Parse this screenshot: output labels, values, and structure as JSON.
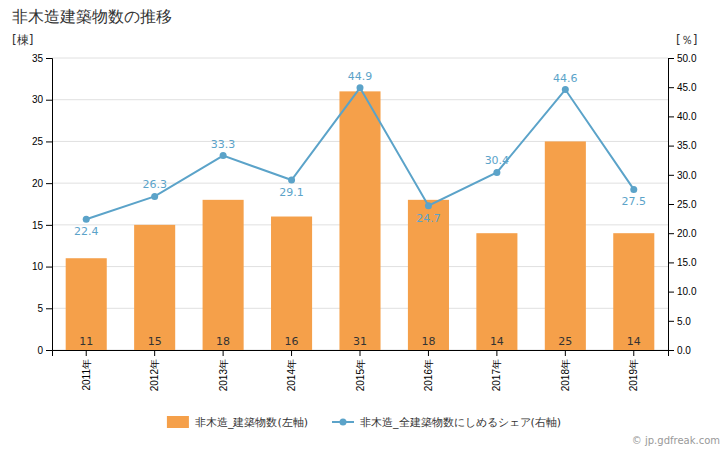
{
  "chart_data": {
    "type": "bar",
    "title": "非木造建築物数の推移",
    "categories": [
      "2011年",
      "2012年",
      "2013年",
      "2014年",
      "2015年",
      "2016年",
      "2017年",
      "2018年",
      "2019年"
    ],
    "series": [
      {
        "name": "非木造_建築物数(左軸)",
        "type": "bar",
        "color": "#F5A04A",
        "values": [
          11,
          15,
          18,
          16,
          31,
          18,
          14,
          25,
          14
        ]
      },
      {
        "name": "非木造_全建築物数にしめるシェア(右軸)",
        "type": "line",
        "color": "#5BA3C9",
        "marker": "circle",
        "axis": "y2",
        "values": [
          22.4,
          26.3,
          33.3,
          29.1,
          44.9,
          24.7,
          30.4,
          44.6,
          27.5
        ]
      }
    ],
    "ylabel": "[棟]",
    "y2label": "[％]",
    "ylim": [
      0,
      35
    ],
    "yticks": [
      0,
      5,
      10,
      15,
      20,
      25,
      30,
      35
    ],
    "y2lim": [
      0,
      50
    ],
    "y2ticks": [
      {
        "value": 0.0,
        "label": "0.0"
      },
      {
        "value": 5.0,
        "label": "5.0"
      },
      {
        "value": 10.0,
        "label": "10.0"
      },
      {
        "value": 15.0,
        "label": "15.0"
      },
      {
        "value": 20.0,
        "label": "20.0"
      },
      {
        "value": 25.0,
        "label": "25.0"
      },
      {
        "value": 30.0,
        "label": "30.0"
      },
      {
        "value": 35.0,
        "label": "35.0"
      },
      {
        "value": 40.0,
        "label": "40.0"
      },
      {
        "value": 45.0,
        "label": "45.0"
      },
      {
        "value": 50.0,
        "label": "50.0"
      }
    ],
    "grid": true,
    "data_labels": true,
    "legend": "bottom",
    "annotations": [
      "© jp.gdfreak.com"
    ]
  }
}
